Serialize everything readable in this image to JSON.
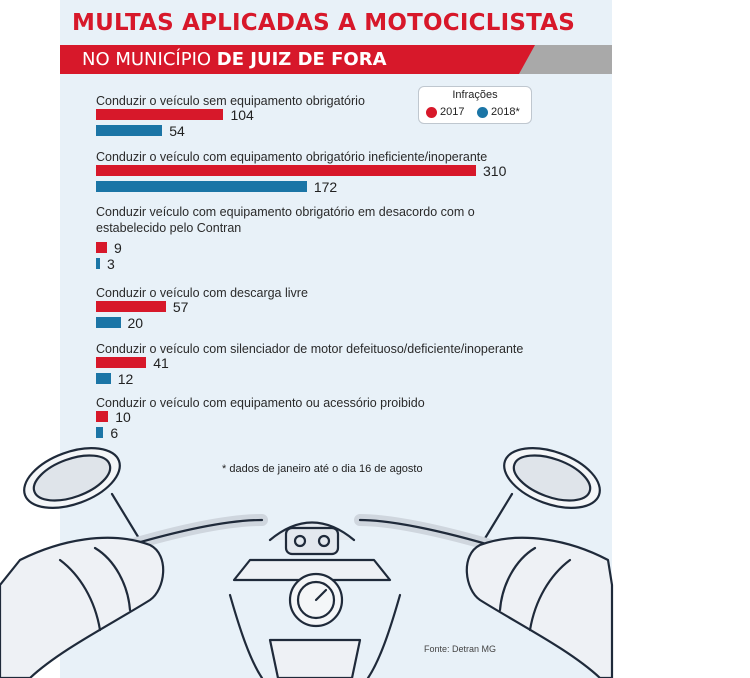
{
  "header": {
    "title": "MULTAS APLICADAS A MOTOCICLISTAS",
    "subtitle_regular": "NO MUNICÍPIO",
    "subtitle_bold": "DE JUIZ DE FORA"
  },
  "legend": {
    "title": "Infrações",
    "items": [
      {
        "label": "2017",
        "color": "#d7182a"
      },
      {
        "label": "2018*",
        "color": "#1b75a6"
      }
    ]
  },
  "colors": {
    "series_2017": "#d7182a",
    "series_2018": "#1b75a6",
    "panel": "#e8f1f8",
    "accent": "#d7182a"
  },
  "chart_data": {
    "type": "bar",
    "orientation": "horizontal",
    "title": "MULTAS APLICADAS A MOTOCICLISTAS NO MUNICÍPIO DE JUIZ DE FORA",
    "legend_title": "Infrações",
    "categories": [
      "Conduzir o veículo sem equipamento obrigatório",
      "Conduzir o veículo com equipamento obrigatório ineficiente/inoperante",
      "Conduzir veículo com equipamento obrigatório em desacordo com o estabelecido pelo Contran",
      "Conduzir o veículo com descarga livre",
      "Conduzir o veículo com silenciador de motor defeituoso/deficiente/inoperante",
      "Conduzir o veículo com equipamento ou acessório proibido"
    ],
    "series": [
      {
        "name": "2017",
        "values": [
          104,
          310,
          9,
          57,
          41,
          10
        ]
      },
      {
        "name": "2018*",
        "values": [
          54,
          172,
          3,
          20,
          12,
          6
        ]
      }
    ],
    "grid": false,
    "legend_position": "top-right"
  },
  "footnote": "* dados de janeiro até o dia 16 de agosto",
  "source": "Fonte: Detran MG",
  "illustration": "motorcycle-handlebars-icon"
}
